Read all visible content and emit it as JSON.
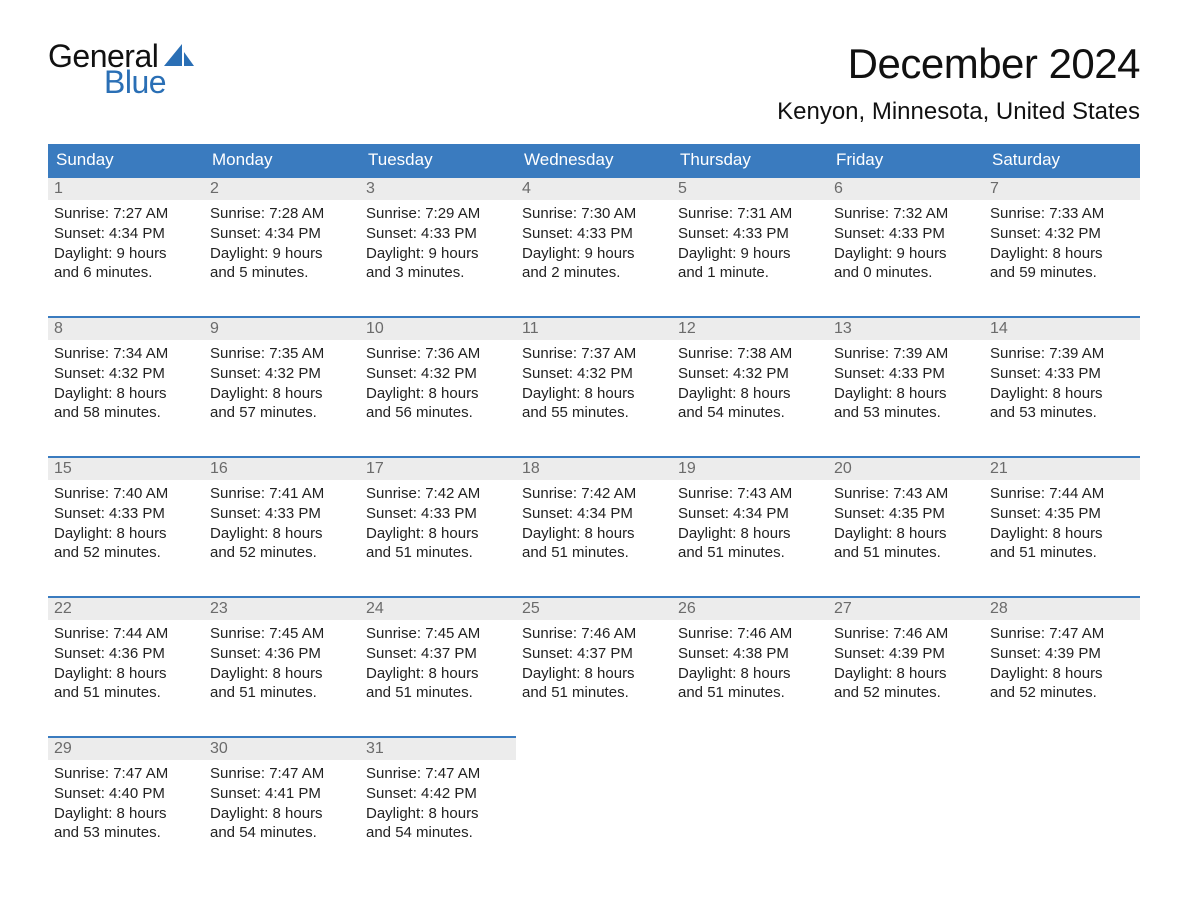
{
  "logo": {
    "word1": "General",
    "word2": "Blue"
  },
  "title": "December 2024",
  "location": "Kenyon, Minnesota, United States",
  "colors": {
    "header_bg": "#3a7bbf",
    "header_text": "#ffffff",
    "daynum_bg": "#ececec",
    "daynum_text": "#6b6b6b",
    "daynum_border": "#3a7bbf",
    "body_text": "#222222",
    "logo_blue": "#2a6fb5",
    "page_bg": "#ffffff"
  },
  "type": "table",
  "columns": [
    "Sunday",
    "Monday",
    "Tuesday",
    "Wednesday",
    "Thursday",
    "Friday",
    "Saturday"
  ],
  "weeks": [
    [
      {
        "n": "1",
        "sr": "Sunrise: 7:27 AM",
        "ss": "Sunset: 4:34 PM",
        "d1": "Daylight: 9 hours",
        "d2": "and 6 minutes."
      },
      {
        "n": "2",
        "sr": "Sunrise: 7:28 AM",
        "ss": "Sunset: 4:34 PM",
        "d1": "Daylight: 9 hours",
        "d2": "and 5 minutes."
      },
      {
        "n": "3",
        "sr": "Sunrise: 7:29 AM",
        "ss": "Sunset: 4:33 PM",
        "d1": "Daylight: 9 hours",
        "d2": "and 3 minutes."
      },
      {
        "n": "4",
        "sr": "Sunrise: 7:30 AM",
        "ss": "Sunset: 4:33 PM",
        "d1": "Daylight: 9 hours",
        "d2": "and 2 minutes."
      },
      {
        "n": "5",
        "sr": "Sunrise: 7:31 AM",
        "ss": "Sunset: 4:33 PM",
        "d1": "Daylight: 9 hours",
        "d2": "and 1 minute."
      },
      {
        "n": "6",
        "sr": "Sunrise: 7:32 AM",
        "ss": "Sunset: 4:33 PM",
        "d1": "Daylight: 9 hours",
        "d2": "and 0 minutes."
      },
      {
        "n": "7",
        "sr": "Sunrise: 7:33 AM",
        "ss": "Sunset: 4:32 PM",
        "d1": "Daylight: 8 hours",
        "d2": "and 59 minutes."
      }
    ],
    [
      {
        "n": "8",
        "sr": "Sunrise: 7:34 AM",
        "ss": "Sunset: 4:32 PM",
        "d1": "Daylight: 8 hours",
        "d2": "and 58 minutes."
      },
      {
        "n": "9",
        "sr": "Sunrise: 7:35 AM",
        "ss": "Sunset: 4:32 PM",
        "d1": "Daylight: 8 hours",
        "d2": "and 57 minutes."
      },
      {
        "n": "10",
        "sr": "Sunrise: 7:36 AM",
        "ss": "Sunset: 4:32 PM",
        "d1": "Daylight: 8 hours",
        "d2": "and 56 minutes."
      },
      {
        "n": "11",
        "sr": "Sunrise: 7:37 AM",
        "ss": "Sunset: 4:32 PM",
        "d1": "Daylight: 8 hours",
        "d2": "and 55 minutes."
      },
      {
        "n": "12",
        "sr": "Sunrise: 7:38 AM",
        "ss": "Sunset: 4:32 PM",
        "d1": "Daylight: 8 hours",
        "d2": "and 54 minutes."
      },
      {
        "n": "13",
        "sr": "Sunrise: 7:39 AM",
        "ss": "Sunset: 4:33 PM",
        "d1": "Daylight: 8 hours",
        "d2": "and 53 minutes."
      },
      {
        "n": "14",
        "sr": "Sunrise: 7:39 AM",
        "ss": "Sunset: 4:33 PM",
        "d1": "Daylight: 8 hours",
        "d2": "and 53 minutes."
      }
    ],
    [
      {
        "n": "15",
        "sr": "Sunrise: 7:40 AM",
        "ss": "Sunset: 4:33 PM",
        "d1": "Daylight: 8 hours",
        "d2": "and 52 minutes."
      },
      {
        "n": "16",
        "sr": "Sunrise: 7:41 AM",
        "ss": "Sunset: 4:33 PM",
        "d1": "Daylight: 8 hours",
        "d2": "and 52 minutes."
      },
      {
        "n": "17",
        "sr": "Sunrise: 7:42 AM",
        "ss": "Sunset: 4:33 PM",
        "d1": "Daylight: 8 hours",
        "d2": "and 51 minutes."
      },
      {
        "n": "18",
        "sr": "Sunrise: 7:42 AM",
        "ss": "Sunset: 4:34 PM",
        "d1": "Daylight: 8 hours",
        "d2": "and 51 minutes."
      },
      {
        "n": "19",
        "sr": "Sunrise: 7:43 AM",
        "ss": "Sunset: 4:34 PM",
        "d1": "Daylight: 8 hours",
        "d2": "and 51 minutes."
      },
      {
        "n": "20",
        "sr": "Sunrise: 7:43 AM",
        "ss": "Sunset: 4:35 PM",
        "d1": "Daylight: 8 hours",
        "d2": "and 51 minutes."
      },
      {
        "n": "21",
        "sr": "Sunrise: 7:44 AM",
        "ss": "Sunset: 4:35 PM",
        "d1": "Daylight: 8 hours",
        "d2": "and 51 minutes."
      }
    ],
    [
      {
        "n": "22",
        "sr": "Sunrise: 7:44 AM",
        "ss": "Sunset: 4:36 PM",
        "d1": "Daylight: 8 hours",
        "d2": "and 51 minutes."
      },
      {
        "n": "23",
        "sr": "Sunrise: 7:45 AM",
        "ss": "Sunset: 4:36 PM",
        "d1": "Daylight: 8 hours",
        "d2": "and 51 minutes."
      },
      {
        "n": "24",
        "sr": "Sunrise: 7:45 AM",
        "ss": "Sunset: 4:37 PM",
        "d1": "Daylight: 8 hours",
        "d2": "and 51 minutes."
      },
      {
        "n": "25",
        "sr": "Sunrise: 7:46 AM",
        "ss": "Sunset: 4:37 PM",
        "d1": "Daylight: 8 hours",
        "d2": "and 51 minutes."
      },
      {
        "n": "26",
        "sr": "Sunrise: 7:46 AM",
        "ss": "Sunset: 4:38 PM",
        "d1": "Daylight: 8 hours",
        "d2": "and 51 minutes."
      },
      {
        "n": "27",
        "sr": "Sunrise: 7:46 AM",
        "ss": "Sunset: 4:39 PM",
        "d1": "Daylight: 8 hours",
        "d2": "and 52 minutes."
      },
      {
        "n": "28",
        "sr": "Sunrise: 7:47 AM",
        "ss": "Sunset: 4:39 PM",
        "d1": "Daylight: 8 hours",
        "d2": "and 52 minutes."
      }
    ],
    [
      {
        "n": "29",
        "sr": "Sunrise: 7:47 AM",
        "ss": "Sunset: 4:40 PM",
        "d1": "Daylight: 8 hours",
        "d2": "and 53 minutes."
      },
      {
        "n": "30",
        "sr": "Sunrise: 7:47 AM",
        "ss": "Sunset: 4:41 PM",
        "d1": "Daylight: 8 hours",
        "d2": "and 54 minutes."
      },
      {
        "n": "31",
        "sr": "Sunrise: 7:47 AM",
        "ss": "Sunset: 4:42 PM",
        "d1": "Daylight: 8 hours",
        "d2": "and 54 minutes."
      },
      null,
      null,
      null,
      null
    ]
  ]
}
